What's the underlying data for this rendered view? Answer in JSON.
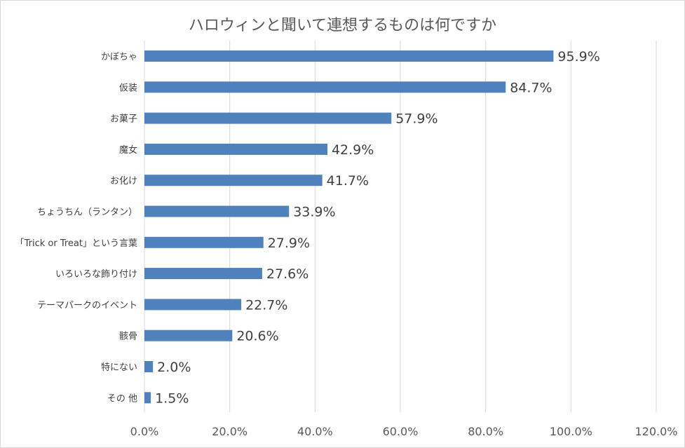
{
  "chart_data": {
    "type": "bar",
    "orientation": "horizontal",
    "title": "ハロウィンと聞いて連想するものは何ですか",
    "categories": [
      "かぼちゃ",
      "仮装",
      "お菓子",
      "魔女",
      "お化け",
      "ちょうちん（ランタン）",
      "「Trick or Treat」という言葉",
      "いろいろな飾り付け",
      "テーマパークのイベント",
      "骸骨",
      "特にない",
      "その 他"
    ],
    "values": [
      95.9,
      84.7,
      57.9,
      42.9,
      41.7,
      33.9,
      27.9,
      27.6,
      22.7,
      20.6,
      2.0,
      1.5
    ],
    "data_labels": [
      "95.9%",
      "84.7%",
      "57.9%",
      "42.9%",
      "41.7%",
      "33.9%",
      "27.9%",
      "27.6%",
      "22.7%",
      "20.6%",
      "2.0%",
      "1.5%"
    ],
    "xlim": [
      0,
      120
    ],
    "x_ticks": [
      0,
      20,
      40,
      60,
      80,
      100,
      120
    ],
    "x_tick_labels": [
      "0.0%",
      "20.0%",
      "40.0%",
      "60.0%",
      "80.0%",
      "100.0%",
      "120.0%"
    ],
    "grid": "vertical",
    "bar_color": "#4f81bd",
    "grid_color": "#d9d9d9",
    "xlabel": "",
    "ylabel": ""
  }
}
